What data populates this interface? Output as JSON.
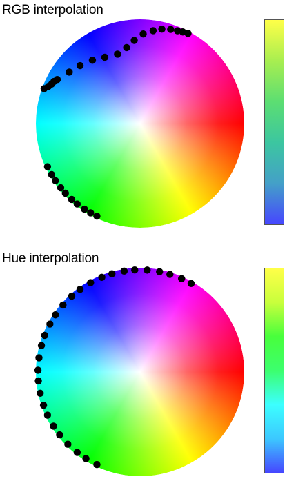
{
  "panels": [
    {
      "id": "rgb",
      "title": "RGB interpolation",
      "interpolation": "rgb",
      "start_color": "#4040ff",
      "end_color": "#ffff40",
      "colorbar_stops": [
        "#4646ff",
        "#44a0c8",
        "#3cc6a0",
        "#5cde72",
        "#a8ee50",
        "#ffff48"
      ],
      "points": [
        {
          "hue": 245,
          "sat": 0.98
        },
        {
          "hue": 241,
          "sat": 0.98
        },
        {
          "hue": 237,
          "sat": 0.98
        },
        {
          "hue": 232,
          "sat": 0.98
        },
        {
          "hue": 228,
          "sat": 0.98
        },
        {
          "hue": 223,
          "sat": 0.98
        },
        {
          "hue": 219,
          "sat": 0.98
        },
        {
          "hue": 214,
          "sat": 0.98
        },
        {
          "hue": 210,
          "sat": 0.98
        },
        {
          "hue": 205,
          "sat": 0.98
        },
        {
          "hue": 160,
          "sat": 0.98
        },
        {
          "hue": 158,
          "sat": 0.95
        },
        {
          "hue": 156,
          "sat": 0.93
        },
        {
          "hue": 154,
          "sat": 0.92
        },
        {
          "hue": 152,
          "sat": 0.9
        },
        {
          "hue": 144,
          "sat": 0.84
        },
        {
          "hue": 136,
          "sat": 0.8
        },
        {
          "hue": 127,
          "sat": 0.76
        },
        {
          "hue": 118,
          "sat": 0.72
        },
        {
          "hue": 108,
          "sat": 0.7
        },
        {
          "hue": 100,
          "sat": 0.74
        },
        {
          "hue": 94,
          "sat": 0.8
        },
        {
          "hue": 88,
          "sat": 0.86
        },
        {
          "hue": 82,
          "sat": 0.9
        },
        {
          "hue": 77,
          "sat": 0.93
        },
        {
          "hue": 72,
          "sat": 0.95
        },
        {
          "hue": 68,
          "sat": 0.96
        },
        {
          "hue": 65,
          "sat": 0.97
        },
        {
          "hue": 62,
          "sat": 0.98
        }
      ]
    },
    {
      "id": "hue",
      "title": "Hue interpolation",
      "interpolation": "hue",
      "start_color": "#4040ff",
      "end_color": "#ffff40",
      "colorbar_stops": [
        "#4646ff",
        "#3cc8ff",
        "#3cffff",
        "#3cff6e",
        "#48ff3c",
        "#c8ff3c",
        "#ffff48"
      ],
      "points": [
        {
          "hue": 245,
          "sat": 0.98
        },
        {
          "hue": 238,
          "sat": 0.98
        },
        {
          "hue": 232,
          "sat": 0.98
        },
        {
          "hue": 225,
          "sat": 0.98
        },
        {
          "hue": 218,
          "sat": 0.98
        },
        {
          "hue": 212,
          "sat": 0.98
        },
        {
          "hue": 205,
          "sat": 0.98
        },
        {
          "hue": 199,
          "sat": 0.98
        },
        {
          "hue": 192,
          "sat": 0.98
        },
        {
          "hue": 185,
          "sat": 0.98
        },
        {
          "hue": 179,
          "sat": 0.98
        },
        {
          "hue": 172,
          "sat": 0.98
        },
        {
          "hue": 165,
          "sat": 0.98
        },
        {
          "hue": 159,
          "sat": 0.98
        },
        {
          "hue": 152,
          "sat": 0.98
        },
        {
          "hue": 146,
          "sat": 0.98
        },
        {
          "hue": 139,
          "sat": 0.98
        },
        {
          "hue": 132,
          "sat": 0.98
        },
        {
          "hue": 126,
          "sat": 0.98
        },
        {
          "hue": 119,
          "sat": 0.98
        },
        {
          "hue": 112,
          "sat": 0.98
        },
        {
          "hue": 106,
          "sat": 0.98
        },
        {
          "hue": 99,
          "sat": 0.98
        },
        {
          "hue": 93,
          "sat": 0.98
        },
        {
          "hue": 86,
          "sat": 0.98
        },
        {
          "hue": 79,
          "sat": 0.98
        },
        {
          "hue": 73,
          "sat": 0.98
        },
        {
          "hue": 66,
          "sat": 0.98
        },
        {
          "hue": 60,
          "sat": 0.98
        }
      ]
    }
  ]
}
